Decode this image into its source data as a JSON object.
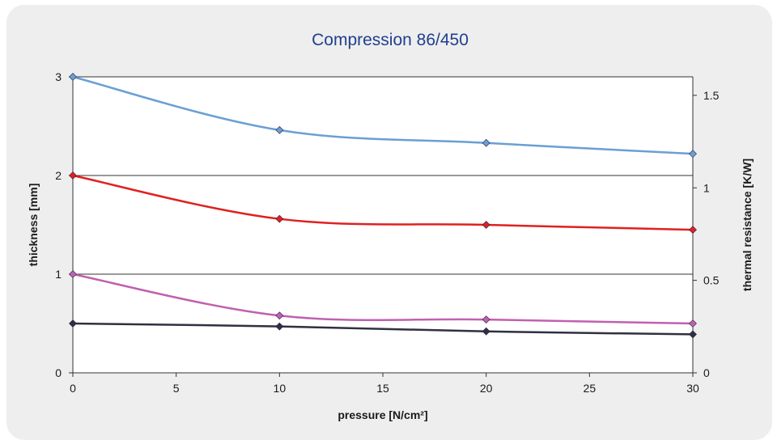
{
  "chart_data": {
    "type": "line",
    "title": "Compression 86/450",
    "xlabel": "pressure [N/cm²]",
    "ylabel": "thickness [mm]",
    "y2label": "thermal resistance [K/W]",
    "xlim": [
      0,
      30
    ],
    "ylim": [
      0,
      3
    ],
    "y2lim": [
      0,
      1.6
    ],
    "x_ticks": [
      "0",
      "5",
      "10",
      "15",
      "20",
      "25",
      "30"
    ],
    "y_ticks": [
      "0",
      "1",
      "2",
      "3"
    ],
    "y2_ticks": [
      "0",
      "0.5",
      "1",
      "1.5"
    ],
    "grid": "horizontal",
    "x": [
      0,
      10,
      20,
      30
    ],
    "series": [
      {
        "axis": "y",
        "color": "#6a9fd4",
        "values": [
          3.0,
          2.46,
          2.33,
          2.22
        ]
      },
      {
        "axis": "y",
        "color": "#e02020",
        "values": [
          2.0,
          1.56,
          1.5,
          1.45
        ]
      },
      {
        "axis": "y",
        "color": "#c060b0",
        "values": [
          1.0,
          0.58,
          0.54,
          0.5
        ]
      },
      {
        "axis": "y",
        "color": "#303040",
        "values": [
          0.5,
          0.47,
          0.42,
          0.39
        ]
      }
    ]
  }
}
